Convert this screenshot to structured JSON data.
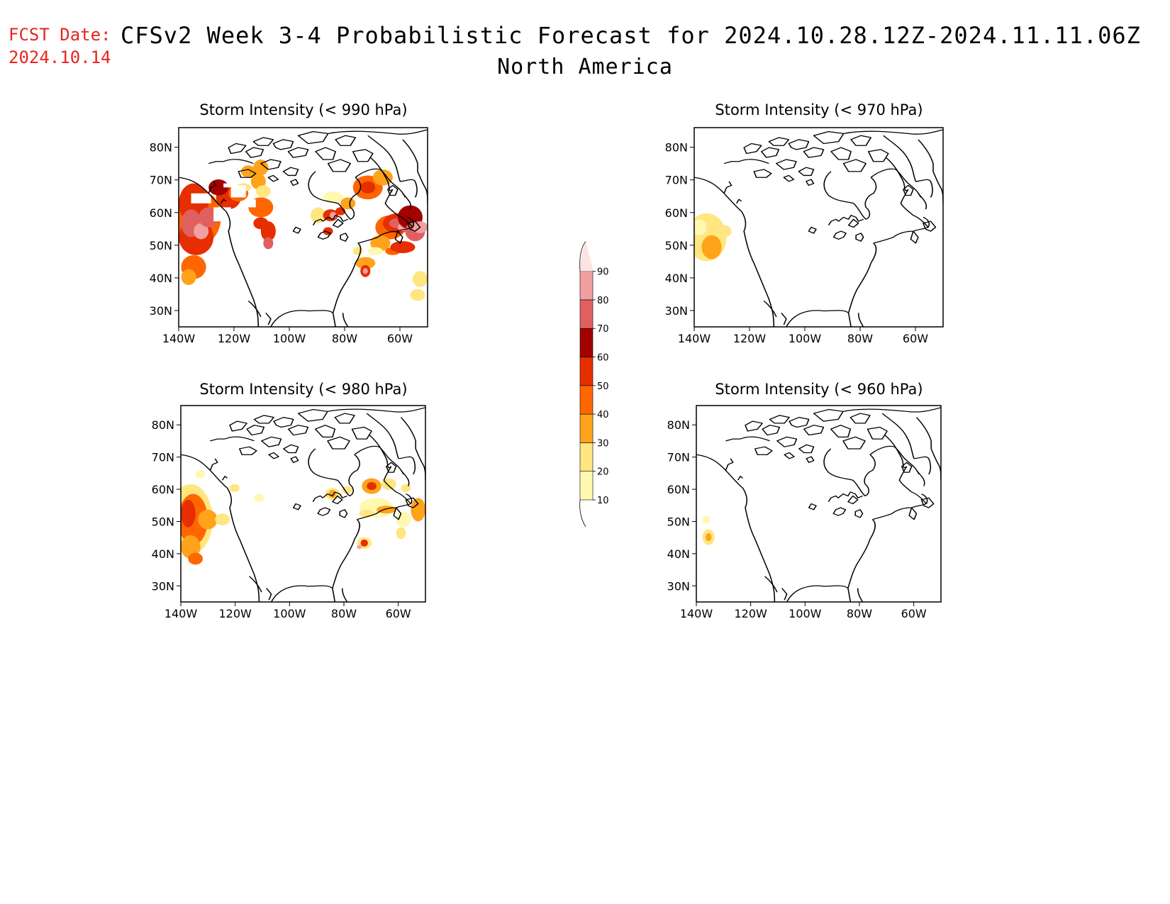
{
  "header": {
    "fcst_label": "FCST Date:",
    "fcst_date": "2024.10.14",
    "title": "CFSv2 Week 3-4 Probabilistic Forecast for 2024.10.28.12Z-2024.11.11.06Z",
    "subtitle": "North America"
  },
  "lat_ticks": [
    "80N",
    "70N",
    "60N",
    "50N",
    "40N",
    "30N"
  ],
  "lon_ticks": [
    "140W",
    "120W",
    "100W",
    "80W",
    "60W"
  ],
  "colorbar": {
    "labels": [
      "90",
      "80",
      "70",
      "60",
      "50",
      "40",
      "30",
      "20",
      "10"
    ],
    "colors": {
      "c10": "#fff8b0",
      "c20": "#ffe680",
      "c30": "#ffa31a",
      "c40": "#ff6600",
      "c50": "#e62e00",
      "c60": "#a30000",
      "c70": "#e06060",
      "c80": "#f0a0a0",
      "c90": "#fde4e4"
    }
  },
  "panels": [
    {
      "id": "p990",
      "title": "Storm Intensity (< 990 hPa)"
    },
    {
      "id": "p970",
      "title": "Storm Intensity (< 970 hPa)"
    },
    {
      "id": "p980",
      "title": "Storm Intensity (< 980 hPa)"
    },
    {
      "id": "p960",
      "title": "Storm Intensity (< 960 hPa)"
    }
  ]
}
